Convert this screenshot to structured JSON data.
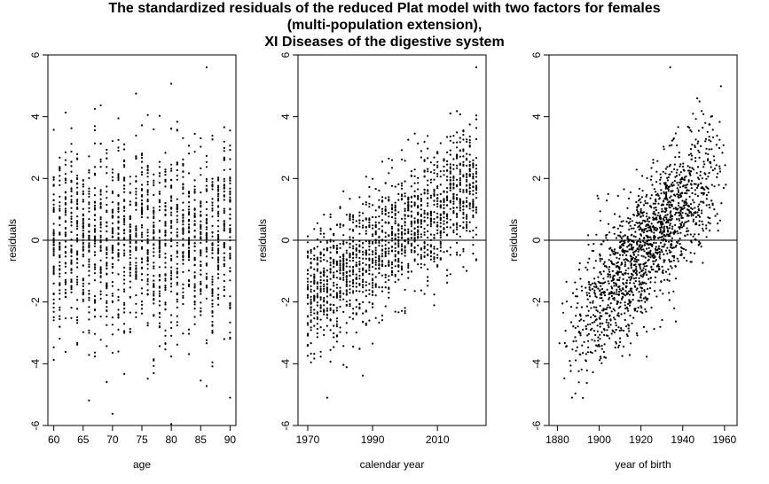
{
  "title_lines": [
    "The standardized residuals of the reduced Plat model with two factors for females",
    "(multi-population extension),",
    "XI Diseases of the digestive system"
  ],
  "chart_data": [
    {
      "type": "scatter",
      "xlabel": "age",
      "ylabel": "residuals",
      "xlim": [
        59,
        91
      ],
      "ylim": [
        -6,
        6
      ],
      "xticks": [
        60,
        65,
        70,
        75,
        80,
        85,
        90
      ],
      "yticks": [
        -6,
        -4,
        -2,
        0,
        2,
        4,
        6
      ],
      "hline": 0,
      "points_description": "columns at each integer age 60–90, residuals spread roughly between -4 and 4, max ≈ 5.6 at age 86, min ≈ -5.1 at age 90",
      "x_range": [
        60,
        90
      ],
      "y_extremes": {
        "max": 5.6,
        "min": -5.1
      }
    },
    {
      "type": "scatter",
      "xlabel": "calendar year",
      "ylabel": "residuals",
      "xlim": [
        1967,
        2025
      ],
      "ylim": [
        -6,
        6
      ],
      "xticks": [
        1970,
        1990,
        2010
      ],
      "yticks": [
        -6,
        -4,
        -2,
        0,
        2,
        4,
        6
      ],
      "hline": 0,
      "trend": {
        "start_year": 1970,
        "start_mean": -1.8,
        "end_year": 2022,
        "end_mean": 1.8
      },
      "x_range": [
        1970,
        2022
      ],
      "y_extremes": {
        "max": 5.6,
        "min": -5.1
      }
    },
    {
      "type": "scatter",
      "xlabel": "year of birth",
      "ylabel": "residuals",
      "xlim": [
        1876,
        1966
      ],
      "ylim": [
        -6,
        6
      ],
      "xticks": [
        1880,
        1900,
        1920,
        1940,
        1960
      ],
      "yticks": [
        -6,
        -4,
        -2,
        0,
        2,
        4,
        6
      ],
      "hline": 0,
      "trend": {
        "start_year": 1880,
        "start_mean": -3.5,
        "end_year": 1962,
        "end_mean": 2.8
      },
      "x_range": [
        1880,
        1962
      ],
      "y_extremes": {
        "max": 5.6,
        "min": -5.1
      }
    }
  ]
}
